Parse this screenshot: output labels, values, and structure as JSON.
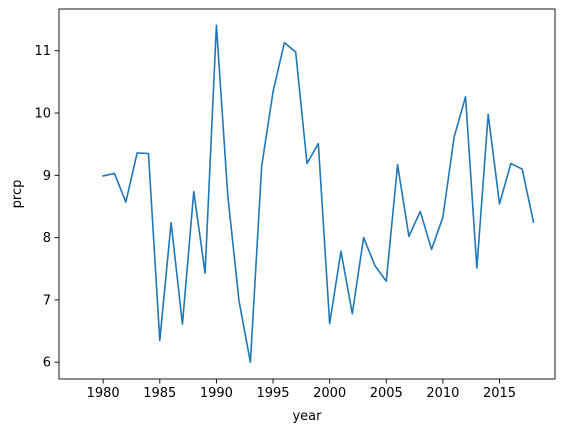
{
  "chart_data": {
    "type": "line",
    "title": "",
    "xlabel": "year",
    "ylabel": "prcp",
    "xlim": [
      1976.1,
      2019.9
    ],
    "ylim": [
      5.73,
      11.67
    ],
    "xticks": [
      1980,
      1985,
      1990,
      1995,
      2000,
      2005,
      2010,
      2015
    ],
    "yticks": [
      6,
      7,
      8,
      9,
      10,
      11
    ],
    "grid": false,
    "colors": {
      "line": "#1f77b4"
    },
    "series": [
      {
        "x": [
          1980,
          1981,
          1982,
          1983,
          1984,
          1985,
          1986,
          1987,
          1988,
          1989,
          1990,
          1991,
          1992,
          1993,
          1994,
          1995,
          1996,
          1997,
          1998,
          1999,
          2000,
          2001,
          2002,
          2003,
          2004,
          2005,
          2006,
          2007,
          2008,
          2009,
          2010,
          2011,
          2012,
          2013,
          2014,
          2015,
          2016,
          2017,
          2018
        ],
        "values": [
          8.99,
          9.03,
          8.57,
          9.36,
          9.35,
          6.35,
          8.24,
          6.61,
          8.74,
          7.43,
          11.41,
          8.68,
          6.98,
          6.0,
          9.15,
          10.34,
          11.13,
          10.98,
          9.19,
          9.51,
          6.62,
          7.78,
          6.78,
          8.0,
          7.55,
          7.3,
          9.17,
          8.02,
          8.42,
          7.81,
          8.33,
          9.62,
          10.26,
          7.51,
          9.98,
          8.54,
          9.19,
          9.1,
          8.25
        ]
      }
    ]
  }
}
